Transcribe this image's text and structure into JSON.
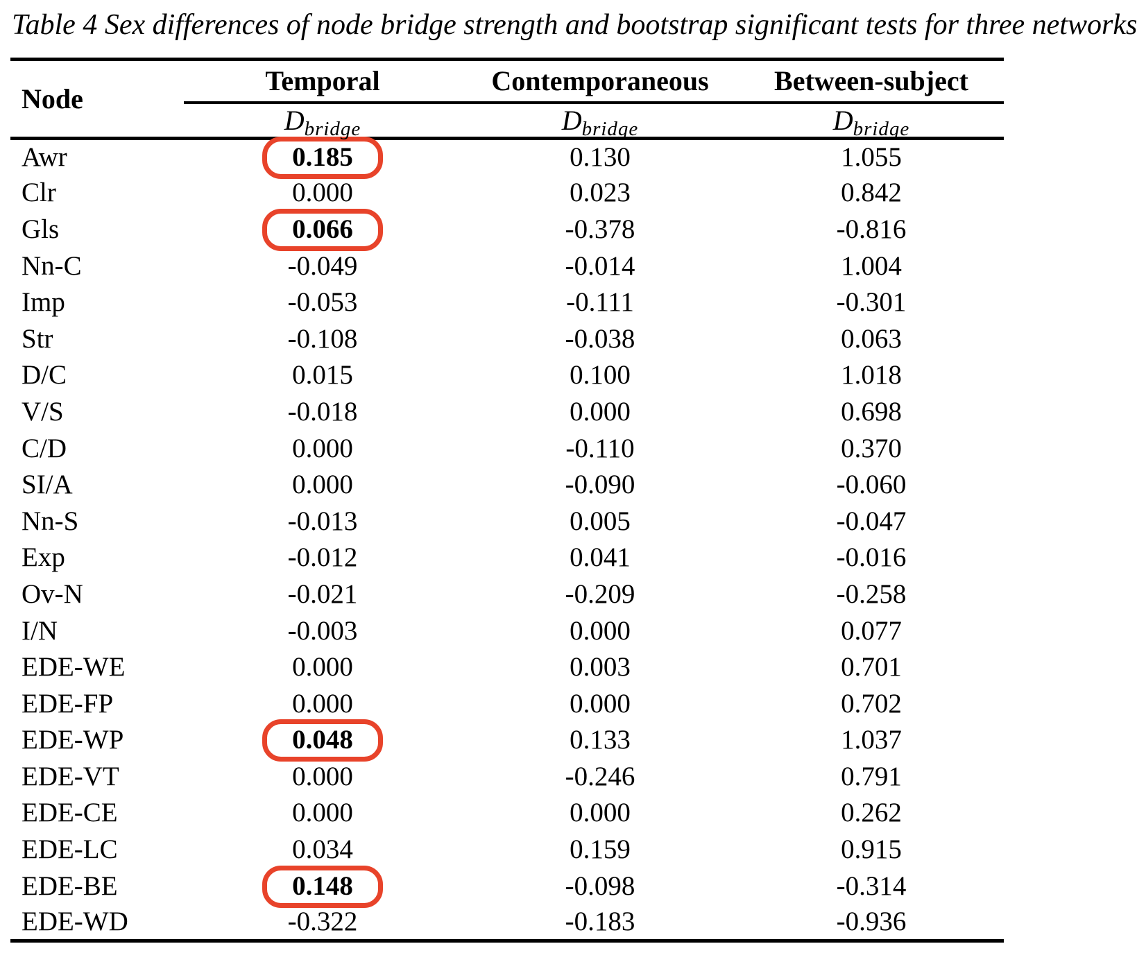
{
  "title": "Table 4 Sex differences of node bridge strength and bootstrap significant tests for three networks",
  "highlight_color": "#e8432a",
  "table": {
    "node_header": "Node",
    "group_headers": [
      "Temporal",
      "Contemporaneous",
      "Between-subject"
    ],
    "measure_symbol": "D",
    "measure_subscript": "bridge",
    "rows": [
      {
        "node": "Awr",
        "values": [
          "0.185",
          "0.130",
          "1.055"
        ],
        "highlight": [
          true,
          false,
          false
        ]
      },
      {
        "node": "Clr",
        "values": [
          "0.000",
          "0.023",
          "0.842"
        ],
        "highlight": [
          false,
          false,
          false
        ]
      },
      {
        "node": "Gls",
        "values": [
          "0.066",
          "-0.378",
          "-0.816"
        ],
        "highlight": [
          true,
          false,
          false
        ]
      },
      {
        "node": "Nn-C",
        "values": [
          "-0.049",
          "-0.014",
          "1.004"
        ],
        "highlight": [
          false,
          false,
          false
        ]
      },
      {
        "node": "Imp",
        "values": [
          "-0.053",
          "-0.111",
          "-0.301"
        ],
        "highlight": [
          false,
          false,
          false
        ]
      },
      {
        "node": "Str",
        "values": [
          "-0.108",
          "-0.038",
          "0.063"
        ],
        "highlight": [
          false,
          false,
          false
        ]
      },
      {
        "node": "D/C",
        "values": [
          "0.015",
          "0.100",
          "1.018"
        ],
        "highlight": [
          false,
          false,
          false
        ]
      },
      {
        "node": "V/S",
        "values": [
          "-0.018",
          "0.000",
          "0.698"
        ],
        "highlight": [
          false,
          false,
          false
        ]
      },
      {
        "node": "C/D",
        "values": [
          "0.000",
          "-0.110",
          "0.370"
        ],
        "highlight": [
          false,
          false,
          false
        ]
      },
      {
        "node": "SI/A",
        "values": [
          "0.000",
          "-0.090",
          "-0.060"
        ],
        "highlight": [
          false,
          false,
          false
        ]
      },
      {
        "node": "Nn-S",
        "values": [
          "-0.013",
          "0.005",
          "-0.047"
        ],
        "highlight": [
          false,
          false,
          false
        ]
      },
      {
        "node": "Exp",
        "values": [
          "-0.012",
          "0.041",
          "-0.016"
        ],
        "highlight": [
          false,
          false,
          false
        ]
      },
      {
        "node": "Ov-N",
        "values": [
          "-0.021",
          "-0.209",
          "-0.258"
        ],
        "highlight": [
          false,
          false,
          false
        ]
      },
      {
        "node": "I/N",
        "values": [
          "-0.003",
          "0.000",
          "0.077"
        ],
        "highlight": [
          false,
          false,
          false
        ]
      },
      {
        "node": "EDE-WE",
        "values": [
          "0.000",
          "0.003",
          "0.701"
        ],
        "highlight": [
          false,
          false,
          false
        ]
      },
      {
        "node": "EDE-FP",
        "values": [
          "0.000",
          "0.000",
          "0.702"
        ],
        "highlight": [
          false,
          false,
          false
        ]
      },
      {
        "node": "EDE-WP",
        "values": [
          "0.048",
          "0.133",
          "1.037"
        ],
        "highlight": [
          true,
          false,
          false
        ]
      },
      {
        "node": "EDE-VT",
        "values": [
          "0.000",
          "-0.246",
          "0.791"
        ],
        "highlight": [
          false,
          false,
          false
        ]
      },
      {
        "node": "EDE-CE",
        "values": [
          "0.000",
          "0.000",
          "0.262"
        ],
        "highlight": [
          false,
          false,
          false
        ]
      },
      {
        "node": "EDE-LC",
        "values": [
          "0.034",
          "0.159",
          "0.915"
        ],
        "highlight": [
          false,
          false,
          false
        ]
      },
      {
        "node": "EDE-BE",
        "values": [
          "0.148",
          "-0.098",
          "-0.314"
        ],
        "highlight": [
          true,
          false,
          false
        ]
      },
      {
        "node": "EDE-WD",
        "values": [
          "-0.322",
          "-0.183",
          "-0.936"
        ],
        "highlight": [
          false,
          false,
          false
        ]
      }
    ]
  }
}
